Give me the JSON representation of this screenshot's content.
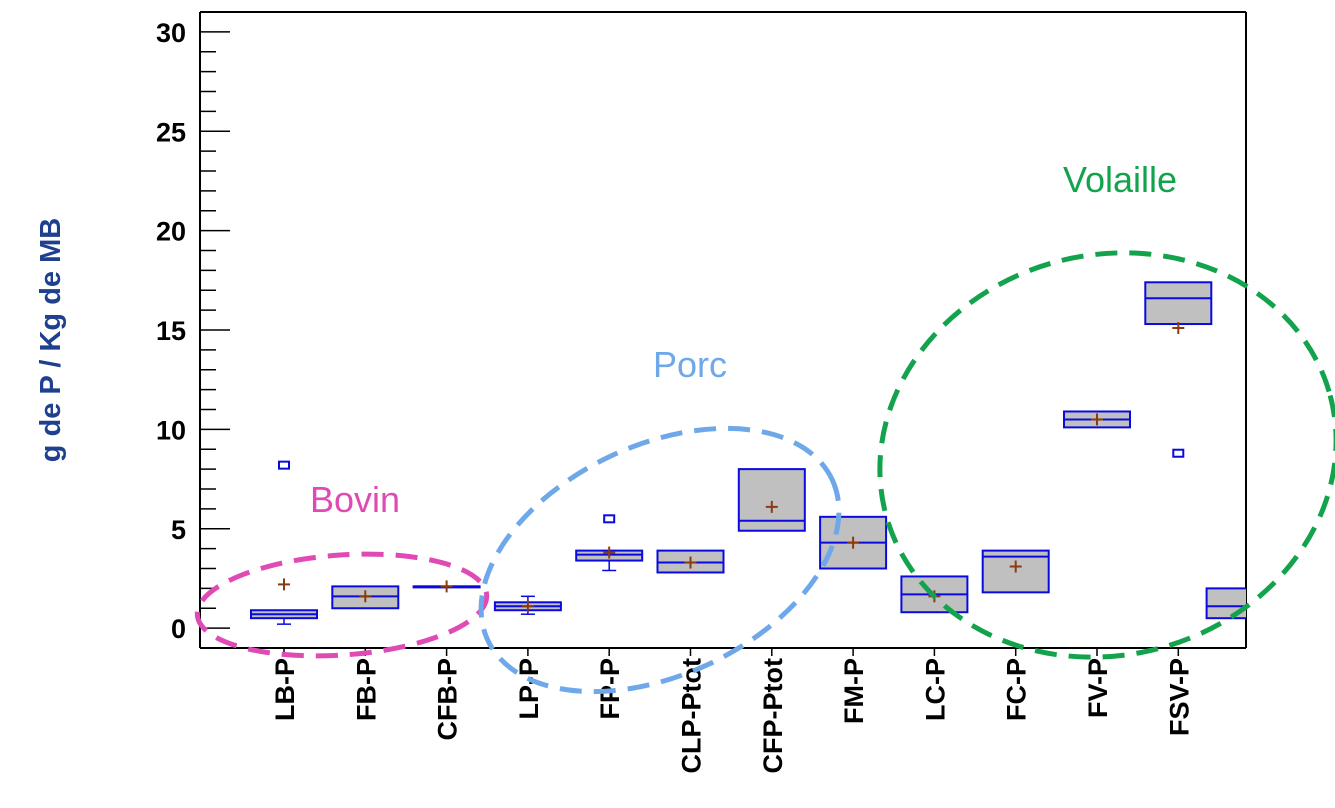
{
  "chart_data": {
    "type": "box",
    "ylabel": "g de P / Kg de MB",
    "xlabel": "",
    "ylim": [
      -1,
      31
    ],
    "yticks": [
      0,
      5,
      10,
      15,
      20,
      25,
      30
    ],
    "categories": [
      "LB-P",
      "FB-P",
      "CFB-P",
      "LP-P",
      "FP-P",
      "CLP-Ptot",
      "CFP-Ptot",
      "FM-P",
      "LC-P",
      "FC-P",
      "FV-P",
      "FSV-P"
    ],
    "boxes": [
      {
        "label": "LB-P",
        "whisker_low": 0.2,
        "q1": 0.5,
        "median": 0.7,
        "q3": 0.9,
        "whisker_high": 0.9,
        "mean": 2.2,
        "outliers": [
          8.2
        ]
      },
      {
        "label": "FB-P",
        "whisker_low": 1.0,
        "q1": 1.0,
        "median": 1.6,
        "q3": 2.1,
        "whisker_high": 2.1,
        "mean": 1.6,
        "outliers": []
      },
      {
        "label": "CFB-P",
        "whisker_low": 2.1,
        "q1": 2.1,
        "median": 2.1,
        "q3": 2.1,
        "whisker_high": 2.1,
        "mean": 2.1,
        "outliers": []
      },
      {
        "label": "LP-P",
        "whisker_low": 0.7,
        "q1": 0.9,
        "median": 1.1,
        "q3": 1.3,
        "whisker_high": 1.6,
        "mean": 1.1,
        "outliers": []
      },
      {
        "label": "FP-P",
        "whisker_low": 2.9,
        "q1": 3.4,
        "median": 3.7,
        "q3": 3.9,
        "whisker_high": 3.9,
        "mean": 3.8,
        "outliers": [
          5.5
        ]
      },
      {
        "label": "CLP-Ptot",
        "whisker_low": 2.8,
        "q1": 2.8,
        "median": 3.3,
        "q3": 3.9,
        "whisker_high": 3.9,
        "mean": 3.3,
        "outliers": []
      },
      {
        "label": "CFP-Ptot",
        "whisker_low": 4.9,
        "q1": 4.9,
        "median": 5.4,
        "q3": 8.0,
        "whisker_high": 8.0,
        "mean": 6.1,
        "outliers": []
      },
      {
        "label": "FM-P",
        "whisker_low": 3.0,
        "q1": 3.0,
        "median": 4.3,
        "q3": 5.6,
        "whisker_high": 5.6,
        "mean": 4.3,
        "outliers": []
      },
      {
        "label": "LC-P",
        "whisker_low": 0.8,
        "q1": 0.8,
        "median": 1.7,
        "q3": 2.6,
        "whisker_high": 2.6,
        "mean": 1.6,
        "outliers": []
      },
      {
        "label": "FC-P",
        "whisker_low": 1.8,
        "q1": 1.8,
        "median": 3.6,
        "q3": 3.9,
        "whisker_high": 3.9,
        "mean": 3.1,
        "outliers": []
      },
      {
        "label": "FV-P",
        "whisker_low": 10.1,
        "q1": 10.1,
        "median": 10.5,
        "q3": 10.9,
        "whisker_high": 10.9,
        "mean": 10.5,
        "outliers": []
      },
      {
        "label": "FSV-P",
        "whisker_low": 15.3,
        "q1": 15.3,
        "median": 16.6,
        "q3": 17.4,
        "whisker_high": 17.4,
        "mean": 15.1,
        "outliers": [
          8.8
        ]
      }
    ],
    "partial_box": {
      "whisker_low": 0.5,
      "q1": 0.5,
      "median": 1.1,
      "q3": 2.0,
      "whisker_high": 2.0
    },
    "groups": [
      {
        "label": "Bovin",
        "color": "#e04ab5",
        "categories": [
          "LB-P",
          "FB-P",
          "CFB-P"
        ]
      },
      {
        "label": "Porc",
        "color": "#6fa8e8",
        "categories": [
          "LP-P",
          "FP-P",
          "CLP-Ptot",
          "CFP-Ptot"
        ]
      },
      {
        "label": "Volaille",
        "color": "#13a34d",
        "categories": [
          "LC-P",
          "FC-P",
          "FV-P",
          "FSV-P"
        ]
      }
    ],
    "colors": {
      "box_fill": "#c0c0c0",
      "box_stroke": "#0a0adf",
      "mean_marker": "#8b3a12",
      "axis": "#000000",
      "ylabel": "#1f3f8f"
    },
    "grid": false,
    "legend": "none"
  }
}
